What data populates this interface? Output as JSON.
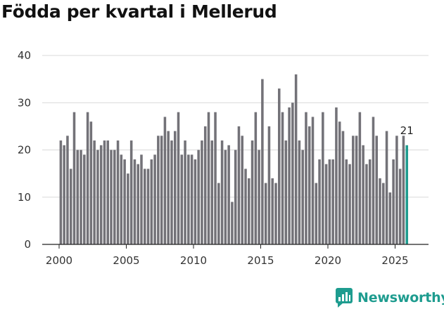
{
  "brand": {
    "name": "Newsworthy",
    "accent_color": "#1e9c8f",
    "icon": "newsworthy-logo-icon"
  },
  "chart_data": {
    "type": "bar",
    "title": "Födda per kvartal i Mellerud",
    "xlabel": "",
    "ylabel": "",
    "ylim": [
      0,
      40
    ],
    "yticks": [
      0,
      10,
      20,
      30,
      40
    ],
    "xticks": [
      2000,
      2005,
      2010,
      2015,
      2020,
      2025
    ],
    "x_start": 2000.0,
    "period": 0.25,
    "grid": true,
    "bar_color": "#737278",
    "highlight_color": "#1e9c8f",
    "highlight_last": true,
    "last_value_label": "21",
    "values": [
      22,
      21,
      23,
      16,
      28,
      20,
      20,
      19,
      28,
      26,
      22,
      20,
      21,
      22,
      22,
      20,
      20,
      22,
      19,
      18,
      15,
      22,
      18,
      17,
      19,
      16,
      16,
      18,
      19,
      23,
      23,
      27,
      24,
      22,
      24,
      28,
      19,
      22,
      19,
      19,
      18,
      20,
      22,
      25,
      28,
      22,
      28,
      13,
      22,
      20,
      21,
      9,
      20,
      25,
      23,
      16,
      14,
      22,
      28,
      20,
      35,
      13,
      25,
      14,
      13,
      33,
      28,
      22,
      29,
      30,
      36,
      22,
      20,
      28,
      25,
      27,
      13,
      18,
      28,
      17,
      18,
      18,
      29,
      26,
      24,
      18,
      17,
      23,
      23,
      28,
      21,
      17,
      18,
      27,
      23,
      14,
      13,
      24,
      11,
      18,
      23,
      16,
      23,
      21
    ]
  }
}
